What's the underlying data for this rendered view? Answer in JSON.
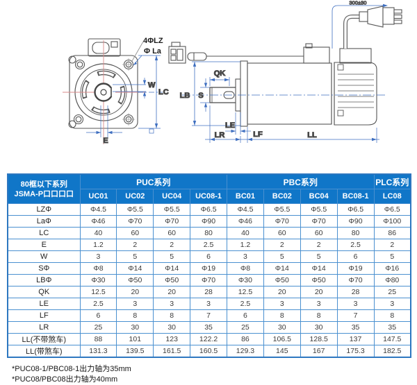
{
  "colors": {
    "header_bg": "#1076c8",
    "grid_line": "#4a90d0",
    "outer_border": "#2d77c0",
    "dimension_blue": "#3f6fc0",
    "centerline_red": "#d98a8a",
    "linework_gray": "#555555"
  },
  "front_view": {
    "labels": {
      "bolts": "4ΦLZ",
      "pilot": "Φ La",
      "w": "W",
      "lc": "LC",
      "e": "E"
    }
  },
  "side_view": {
    "labels": {
      "lb": "LB",
      "s": "S",
      "qk": "QK",
      "le": "LE",
      "lr": "LR",
      "lf": "LF",
      "ll": "LL",
      "cable": "300±30"
    }
  },
  "table": {
    "corner": [
      "80框以下系列",
      "JSMA-P口口口口"
    ],
    "groups": [
      {
        "label": "PUC系列",
        "span": 4
      },
      {
        "label": "PBC系列",
        "span": 4
      },
      {
        "label": "PLC系列",
        "span": 1
      }
    ],
    "models": [
      "UC01",
      "UC02",
      "UC04",
      "UC08-1",
      "BC01",
      "BC02",
      "BC04",
      "BC08-1",
      "LC08"
    ],
    "rows": [
      {
        "label": "LZΦ",
        "values": [
          "Φ4.5",
          "Φ5.5",
          "Φ5.5",
          "Φ6.5",
          "Φ4.5",
          "Φ5.5",
          "Φ5.5",
          "Φ6.5",
          "Φ6.5"
        ]
      },
      {
        "label": "LaΦ",
        "values": [
          "Φ46",
          "Φ70",
          "Φ70",
          "Φ90",
          "Φ46",
          "Φ70",
          "Φ70",
          "Φ90",
          "Φ100"
        ]
      },
      {
        "label": "LC",
        "values": [
          "40",
          "60",
          "60",
          "80",
          "40",
          "60",
          "60",
          "80",
          "86"
        ]
      },
      {
        "label": "E",
        "values": [
          "1.2",
          "2",
          "2",
          "2.5",
          "1.2",
          "2",
          "2",
          "2.5",
          "2"
        ]
      },
      {
        "label": "W",
        "values": [
          "3",
          "5",
          "5",
          "6",
          "3",
          "5",
          "5",
          "6",
          "5"
        ]
      },
      {
        "label": "SΦ",
        "values": [
          "Φ8",
          "Φ14",
          "Φ14",
          "Φ19",
          "Φ8",
          "Φ14",
          "Φ14",
          "Φ19",
          "Φ16"
        ]
      },
      {
        "label": "LBΦ",
        "values": [
          "Φ30",
          "Φ50",
          "Φ50",
          "Φ70",
          "Φ30",
          "Φ50",
          "Φ50",
          "Φ70",
          "Φ80"
        ]
      },
      {
        "label": "QK",
        "values": [
          "12.5",
          "20",
          "20",
          "28",
          "12.5",
          "20",
          "20",
          "28",
          "25"
        ]
      },
      {
        "label": "LE",
        "values": [
          "2.5",
          "3",
          "3",
          "3",
          "2.5",
          "3",
          "3",
          "3",
          "3"
        ]
      },
      {
        "label": "LF",
        "values": [
          "6",
          "8",
          "8",
          "7",
          "6",
          "8",
          "8",
          "7",
          "8"
        ]
      },
      {
        "label": "LR",
        "values": [
          "25",
          "30",
          "30",
          "35",
          "25",
          "30",
          "30",
          "35",
          "35"
        ]
      },
      {
        "label": "LL(不带煞车)",
        "values": [
          "88",
          "101",
          "123",
          "122.2",
          "86",
          "106.5",
          "128.5",
          "137",
          "147.5"
        ]
      },
      {
        "label": "LL(带煞车)",
        "values": [
          "131.3",
          "139.5",
          "161.5",
          "160.5",
          "129.3",
          "145",
          "167",
          "175.3",
          "182.5"
        ]
      }
    ]
  },
  "footnotes": [
    "*PUC08-1/PBC08-1出力轴为35mm",
    "*PUC08/PBC08出力轴为40mm"
  ]
}
